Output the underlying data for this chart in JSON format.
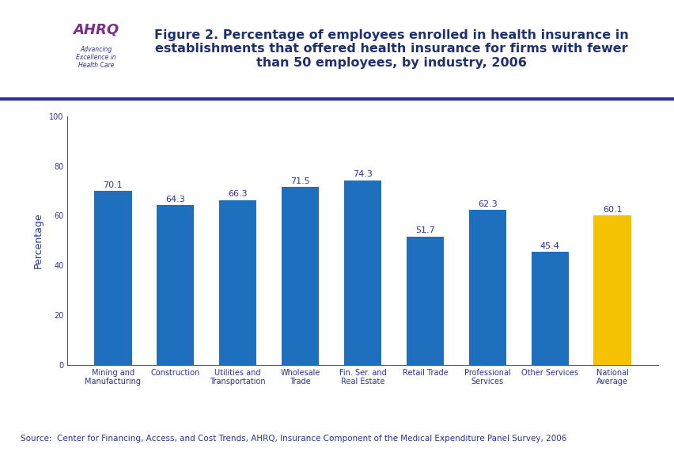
{
  "categories": [
    "Mining and\nManufacturing",
    "Construction",
    "Utilities and\nTransportation",
    "Wholesale\nTrade",
    "Fin. Ser. and\nReal Estate",
    "Retail Trade",
    "Professional\nServices",
    "Other Services",
    "National\nAverage"
  ],
  "values": [
    70.1,
    64.3,
    66.3,
    71.5,
    74.3,
    51.7,
    62.3,
    45.4,
    60.1
  ],
  "bar_colors": [
    "#1F6FBF",
    "#1F6FBF",
    "#1F6FBF",
    "#1F6FBF",
    "#1F6FBF",
    "#1F6FBF",
    "#1F6FBF",
    "#1F6FBF",
    "#F5C200"
  ],
  "ylabel": "Percentage",
  "ylim": [
    0,
    100
  ],
  "yticks": [
    0,
    20,
    40,
    60,
    80,
    100
  ],
  "title": "Figure 2. Percentage of employees enrolled in health insurance in\nestablishments that offered health insurance for firms with fewer\nthan 50 employees, by industry, 2006",
  "title_color": "#1F3070",
  "title_fontsize": 11.5,
  "value_fontsize": 8,
  "value_color": "#2E3192",
  "axis_color": "#555555",
  "background_color": "#FFFFFF",
  "source_text": "Source:  Center for Financing, Access, and Cost Trends, AHRQ, Insurance Component of the Medical Expenditure Panel Survey, 2006",
  "source_fontsize": 7.5,
  "source_color": "#2E3192",
  "ylabel_fontsize": 9,
  "ylabel_color": "#2E3192",
  "tick_label_fontsize": 7,
  "tick_label_color": "#2E3192",
  "separator_color": "#2E3192",
  "separator_linewidth": 3,
  "header_bg_color": "#D6E4F0",
  "logo_bg_color": "#3A9BD5",
  "logo_right_bg": "#F0F0F0"
}
